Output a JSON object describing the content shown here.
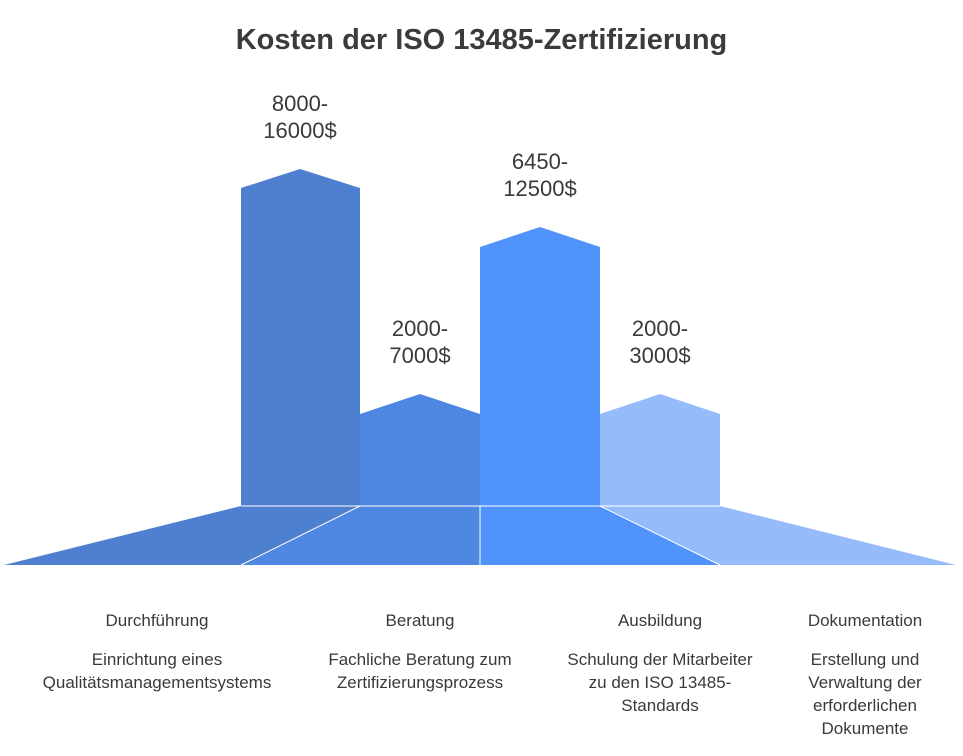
{
  "title": "Kosten der ISO 13485-Zertifizierung",
  "colors": {
    "durchfuehrung": "#4f7fcf",
    "beratung": "#4f88e3",
    "ausbildung": "#5093fb",
    "dokumentation": "#96bbfb"
  },
  "bars": [
    {
      "value_text": "8000-\n16000$",
      "label": "Durchführung",
      "description": "Einrichtung eines\nQualitätsmanagementsystems"
    },
    {
      "value_text": "2000-\n7000$",
      "label": "Beratung",
      "description": "Fachliche Beratung zum\nZertifizierungsprozess"
    },
    {
      "value_text": "6450-\n12500$",
      "label": "Ausbildung",
      "description": "Schulung der Mitarbeiter\nzu den ISO 13485-\nStandards"
    },
    {
      "value_text": "2000-\n3000$",
      "label": "Dokumentation",
      "description": "Erstellung und\nVerwaltung der\nerforderlichen\nDokumente"
    }
  ]
}
